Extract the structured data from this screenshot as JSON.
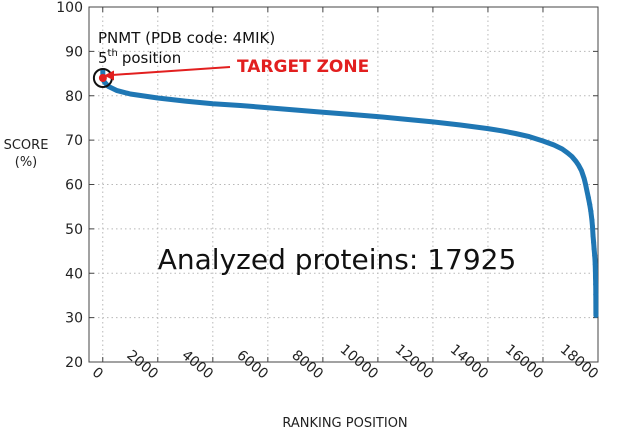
{
  "chart_data": {
    "type": "scatter",
    "title": "",
    "xlabel": "RANKING POSITION",
    "ylabel_line1": "SCORE",
    "ylabel_line2": "(%)",
    "xlim": [
      -500,
      18000
    ],
    "ylim": [
      20,
      100
    ],
    "xticks": [
      0,
      2000,
      4000,
      6000,
      8000,
      10000,
      12000,
      14000,
      16000,
      18000
    ],
    "yticks": [
      20,
      30,
      40,
      50,
      60,
      70,
      80,
      90,
      100
    ],
    "xtick_labels": [
      "0",
      "2000",
      "4000",
      "6000",
      "8000",
      "10000",
      "12000",
      "14000",
      "16000",
      "18000"
    ],
    "ytick_labels": [
      "20",
      "30",
      "40",
      "50",
      "60",
      "70",
      "80",
      "90",
      "100"
    ],
    "grid": true,
    "series": [
      {
        "color": "#1f77b4",
        "x": [
          1,
          5,
          50,
          200,
          500,
          1000,
          2000,
          3000,
          4000,
          5000,
          6000,
          7000,
          8000,
          9000,
          10000,
          11000,
          12000,
          13000,
          14000,
          14500,
          15000,
          15500,
          16000,
          16400,
          16700,
          16900,
          17050,
          17200,
          17300,
          17400,
          17500,
          17550,
          17600,
          17650,
          17700,
          17740,
          17780,
          17800,
          17820,
          17840,
          17860,
          17880,
          17890,
          17900,
          17905,
          17910,
          17915,
          17920,
          17925
        ],
        "y": [
          85.5,
          84.0,
          83.2,
          82.1,
          81.2,
          80.4,
          79.5,
          78.8,
          78.2,
          77.8,
          77.3,
          76.8,
          76.3,
          75.8,
          75.3,
          74.7,
          74.1,
          73.4,
          72.6,
          72.1,
          71.5,
          70.8,
          69.8,
          68.9,
          68.0,
          67.1,
          66.3,
          65.2,
          64.3,
          63.1,
          61.3,
          60.0,
          58.5,
          57.0,
          55.5,
          54.0,
          52.0,
          50.5,
          48.5,
          47.0,
          45.5,
          44.0,
          43.0,
          42.0,
          40.5,
          39.0,
          37.5,
          35.2,
          30.5
        ]
      }
    ],
    "annotations": {
      "protein_line": "PNMT (PDB code: 4MIK)",
      "position_number": "5",
      "position_suffix": "th",
      "position_word": "position",
      "target_label": "TARGET ZONE",
      "analyzed": "Analyzed proteins: 17925",
      "target_color": "#e21f1f",
      "target_x": 5,
      "target_y": 84
    }
  }
}
